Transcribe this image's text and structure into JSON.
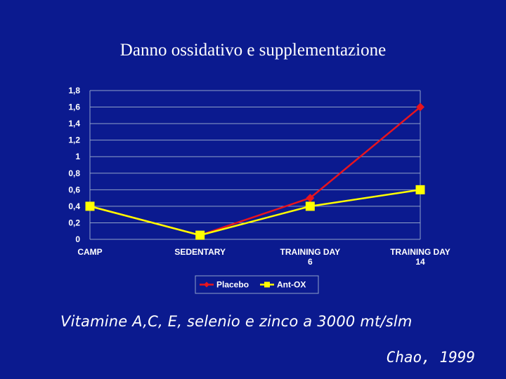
{
  "slide": {
    "title": "Danno ossidativo e supplementazione",
    "subtitle": "Vitamine A,C, E, selenio e zinco a 3000 mt/slm",
    "citation": "Chao, 1999"
  },
  "colors": {
    "background": "#0b1a8f",
    "placebo": "#e8141e",
    "antox": "#ffff00",
    "grid": "#8fa0c8"
  },
  "chart_data": {
    "type": "line",
    "categories": [
      [
        "CAMP"
      ],
      [
        "SEDENTARY"
      ],
      [
        "TRAINING DAY",
        "6"
      ],
      [
        "TRAINING DAY",
        "14"
      ]
    ],
    "ylim": [
      0,
      1.8
    ],
    "yticks": [
      "0",
      "0,2",
      "0,4",
      "0,6",
      "0,8",
      "1",
      "1,2",
      "1,4",
      "1,6",
      "1,8"
    ],
    "grid": true,
    "legend_position": "bottom",
    "series": [
      {
        "name": "Placebo",
        "values": [
          0.4,
          0.05,
          0.5,
          1.6
        ],
        "color": "#e8141e",
        "marker": "diamond"
      },
      {
        "name": "Ant-OX",
        "values": [
          0.4,
          0.05,
          0.4,
          0.6
        ],
        "color": "#ffff00",
        "marker": "square"
      }
    ]
  }
}
